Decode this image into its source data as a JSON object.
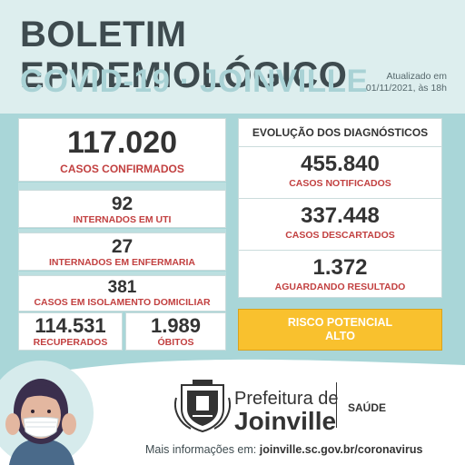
{
  "header": {
    "title": "BOLETIM EPIDEMIOLÓGICO",
    "subtitle": "COVID-19 · JOINVILLE",
    "updated_line1": "Atualizado em",
    "updated_line2": "01/11/2021, às 18h"
  },
  "stats": {
    "confirmed_value": "117.020",
    "confirmed_label": "CASOS CONFIRMADOS",
    "icu_value": "92",
    "icu_label": "INTERNADOS EM UTI",
    "ward_value": "27",
    "ward_label": "INTERNADOS EM ENFERMARIA",
    "home_value": "381",
    "home_label": "CASOS EM ISOLAMENTO DOMICILIAR",
    "recovered_value": "114.531",
    "recovered_label": "RECUPERADOS",
    "deaths_value": "1.989",
    "deaths_label": "ÓBITOS"
  },
  "diagnostics": {
    "title": "EVOLUÇÃO DOS DIAGNÓSTICOS",
    "notified_value": "455.840",
    "notified_label": "CASOS NOTIFICADOS",
    "discarded_value": "337.448",
    "discarded_label": "CASOS DESCARTADOS",
    "pending_value": "1.372",
    "pending_label": "AGUARDANDO RESULTADO"
  },
  "risk": {
    "line1": "RISCO POTENCIAL",
    "line2": "ALTO",
    "color": "#f9c12e"
  },
  "footer": {
    "prefeitura": "Prefeitura de",
    "city": "Joinville",
    "dept": "SAÚDE",
    "info_prefix": "Mais informações em: ",
    "info_url": "joinville.sc.gov.br/coronavirus"
  }
}
